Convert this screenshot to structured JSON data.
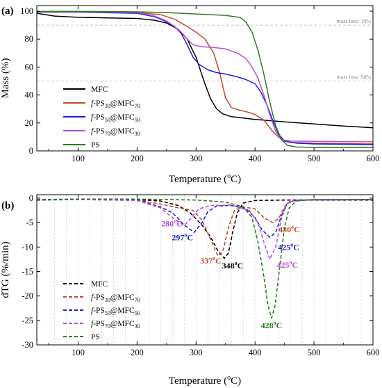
{
  "chart_data": [
    {
      "id": "a",
      "panel_label": "(a)",
      "type": "line",
      "xlabel": "Temperature (°C)",
      "ylabel": "Mass (%)",
      "xlim": [
        30,
        600
      ],
      "ylim": [
        0,
        104
      ],
      "xticks": [
        100,
        200,
        300,
        400,
        500,
        600
      ],
      "yticks": [
        0,
        20,
        40,
        60,
        80,
        100
      ],
      "legend_position": "bottom-left",
      "reference_lines": [
        {
          "y": 90,
          "label": "mass loss: 10%"
        },
        {
          "y": 50,
          "label": "mass loss: 50%"
        }
      ],
      "series": [
        {
          "name": "MFC",
          "color": "#000000",
          "points": [
            [
              30,
              98.5
            ],
            [
              60,
              96.5
            ],
            [
              100,
              95.6
            ],
            [
              150,
              95.2
            ],
            [
              200,
              94.8
            ],
            [
              230,
              93.5
            ],
            [
              250,
              91.5
            ],
            [
              270,
              87
            ],
            [
              285,
              80
            ],
            [
              300,
              67
            ],
            [
              315,
              48
            ],
            [
              325,
              37
            ],
            [
              335,
              30
            ],
            [
              345,
              26.5
            ],
            [
              360,
              24.5
            ],
            [
              400,
              22.5
            ],
            [
              450,
              20.8
            ],
            [
              500,
              19.3
            ],
            [
              550,
              17.8
            ],
            [
              600,
              16.5
            ]
          ]
        },
        {
          "name": "f-PS30@MFC70",
          "color": "#c0482a",
          "points": [
            [
              30,
              99.3
            ],
            [
              100,
              99.3
            ],
            [
              200,
              99
            ],
            [
              240,
              97.5
            ],
            [
              265,
              94
            ],
            [
              285,
              89
            ],
            [
              300,
              85
            ],
            [
              315,
              80
            ],
            [
              330,
              70
            ],
            [
              340,
              56
            ],
            [
              350,
              38
            ],
            [
              360,
              31
            ],
            [
              375,
              29
            ],
            [
              390,
              27.5
            ],
            [
              400,
              26
            ],
            [
              415,
              22
            ],
            [
              430,
              14
            ],
            [
              445,
              8
            ],
            [
              460,
              6
            ],
            [
              500,
              5.5
            ],
            [
              600,
              5
            ]
          ]
        },
        {
          "name": "f-PS50@MFC50",
          "color": "#1c1cd6",
          "points": [
            [
              30,
              99.4
            ],
            [
              100,
              99.3
            ],
            [
              200,
              98.5
            ],
            [
              230,
              96
            ],
            [
              250,
              92.5
            ],
            [
              265,
              88.5
            ],
            [
              275,
              84
            ],
            [
              285,
              76
            ],
            [
              295,
              67
            ],
            [
              305,
              62
            ],
            [
              320,
              58
            ],
            [
              335,
              56
            ],
            [
              350,
              55
            ],
            [
              370,
              53
            ],
            [
              385,
              51
            ],
            [
              400,
              48
            ],
            [
              410,
              42
            ],
            [
              420,
              33
            ],
            [
              430,
              22
            ],
            [
              440,
              12
            ],
            [
              450,
              7
            ],
            [
              470,
              5.5
            ],
            [
              500,
              5
            ],
            [
              600,
              4.5
            ]
          ]
        },
        {
          "name": "f-PS70@MFC30",
          "color": "#b54bd8",
          "points": [
            [
              30,
              99.6
            ],
            [
              100,
              99.5
            ],
            [
              200,
              99
            ],
            [
              230,
              96.5
            ],
            [
              250,
              93
            ],
            [
              265,
              88.5
            ],
            [
              275,
              85
            ],
            [
              285,
              80
            ],
            [
              295,
              76
            ],
            [
              310,
              74.5
            ],
            [
              330,
              74
            ],
            [
              350,
              73
            ],
            [
              370,
              70
            ],
            [
              385,
              66
            ],
            [
              395,
              60
            ],
            [
              405,
              52
            ],
            [
              415,
              40
            ],
            [
              425,
              26
            ],
            [
              435,
              14
            ],
            [
              445,
              8
            ],
            [
              460,
              7
            ],
            [
              500,
              6.8
            ],
            [
              600,
              6.5
            ]
          ]
        },
        {
          "name": "PS",
          "color": "#2a7a1e",
          "points": [
            [
              30,
              99.8
            ],
            [
              100,
              99.8
            ],
            [
              200,
              99.5
            ],
            [
              250,
              99
            ],
            [
              300,
              98
            ],
            [
              350,
              97
            ],
            [
              375,
              95.5
            ],
            [
              385,
              92
            ],
            [
              395,
              85
            ],
            [
              405,
              72
            ],
            [
              415,
              55
            ],
            [
              425,
              35
            ],
            [
              435,
              18
            ],
            [
              445,
              8
            ],
            [
              455,
              4
            ],
            [
              470,
              2.8
            ],
            [
              500,
              2.5
            ],
            [
              600,
              2.5
            ]
          ]
        }
      ]
    },
    {
      "id": "b",
      "panel_label": "(b)",
      "type": "line",
      "xlabel": "Temperature (°C)",
      "ylabel": "dTG (%/min)",
      "xlim": [
        30,
        600
      ],
      "ylim": [
        -30,
        0.7
      ],
      "xticks": [
        100,
        200,
        300,
        400,
        500,
        600
      ],
      "yticks": [
        0,
        -5,
        -10,
        -15,
        -20,
        -25,
        -30
      ],
      "legend_position": "bottom-left",
      "annotations": [
        {
          "text": "280°C",
          "x": 259,
          "y": -5.8,
          "color": "#b54bd8"
        },
        {
          "text": "297°C",
          "x": 277,
          "y": -8.6,
          "color": "#1c1cd6"
        },
        {
          "text": "337°C",
          "x": 325,
          "y": -13.4,
          "color": "#c0482a"
        },
        {
          "text": "348°C",
          "x": 362,
          "y": -14.4,
          "color": "#000000"
        },
        {
          "text": "430°C",
          "x": 458,
          "y": -7.0,
          "color": "#c0482a"
        },
        {
          "text": "425°C",
          "x": 457,
          "y": -10.6,
          "color": "#1c1cd6"
        },
        {
          "text": "425°C",
          "x": 455,
          "y": -14.2,
          "color": "#b54bd8"
        },
        {
          "text": "428°C",
          "x": 428,
          "y": -26.6,
          "color": "#2a7a1e"
        }
      ],
      "series": [
        {
          "name": "MFC",
          "color": "#000000",
          "points": [
            [
              30,
              -0.4
            ],
            [
              100,
              -0.3
            ],
            [
              200,
              -0.3
            ],
            [
              240,
              -0.6
            ],
            [
              270,
              -1.5
            ],
            [
              290,
              -3
            ],
            [
              310,
              -5.5
            ],
            [
              325,
              -8
            ],
            [
              338,
              -11
            ],
            [
              348,
              -12.3
            ],
            [
              355,
              -11.2
            ],
            [
              362,
              -7
            ],
            [
              370,
              -3
            ],
            [
              380,
              -1
            ],
            [
              400,
              -0.5
            ],
            [
              450,
              -0.4
            ],
            [
              500,
              -0.4
            ],
            [
              600,
              -0.4
            ]
          ]
        },
        {
          "name": "f-PS30@MFC70",
          "color": "#c0482a",
          "points": [
            [
              30,
              -0.3
            ],
            [
              100,
              -0.3
            ],
            [
              200,
              -0.4
            ],
            [
              240,
              -1.2
            ],
            [
              270,
              -2
            ],
            [
              295,
              -2.5
            ],
            [
              310,
              -4.5
            ],
            [
              325,
              -8.5
            ],
            [
              337,
              -11.8
            ],
            [
              345,
              -11
            ],
            [
              355,
              -6
            ],
            [
              365,
              -2.5
            ],
            [
              380,
              -1.8
            ],
            [
              400,
              -2.2
            ],
            [
              415,
              -4
            ],
            [
              430,
              -5
            ],
            [
              440,
              -4.2
            ],
            [
              450,
              -1.8
            ],
            [
              460,
              -0.6
            ],
            [
              500,
              -0.3
            ],
            [
              600,
              -0.3
            ]
          ]
        },
        {
          "name": "f-PS50@MFC50",
          "color": "#1c1cd6",
          "points": [
            [
              30,
              -0.3
            ],
            [
              100,
              -0.3
            ],
            [
              200,
              -0.4
            ],
            [
              240,
              -1.8
            ],
            [
              260,
              -3
            ],
            [
              280,
              -5.5
            ],
            [
              297,
              -7
            ],
            [
              310,
              -5
            ],
            [
              320,
              -2.8
            ],
            [
              335,
              -1.6
            ],
            [
              360,
              -1.5
            ],
            [
              385,
              -2.2
            ],
            [
              400,
              -4
            ],
            [
              412,
              -6.5
            ],
            [
              425,
              -8
            ],
            [
              435,
              -7
            ],
            [
              445,
              -3.5
            ],
            [
              455,
              -1
            ],
            [
              470,
              -0.4
            ],
            [
              600,
              -0.3
            ]
          ]
        },
        {
          "name": "f-PS70@MFC30",
          "color": "#b54bd8",
          "points": [
            [
              30,
              -0.3
            ],
            [
              100,
              -0.3
            ],
            [
              200,
              -0.5
            ],
            [
              240,
              -2
            ],
            [
              260,
              -4
            ],
            [
              280,
              -5.6
            ],
            [
              292,
              -4
            ],
            [
              305,
              -2.2
            ],
            [
              325,
              -1.5
            ],
            [
              360,
              -1.4
            ],
            [
              390,
              -2.5
            ],
            [
              405,
              -5
            ],
            [
              415,
              -9
            ],
            [
              425,
              -12.5
            ],
            [
              435,
              -10
            ],
            [
              445,
              -4
            ],
            [
              455,
              -1
            ],
            [
              470,
              -0.4
            ],
            [
              600,
              -0.3
            ]
          ]
        },
        {
          "name": "PS",
          "color": "#2a7a1e",
          "points": [
            [
              30,
              -0.3
            ],
            [
              100,
              -0.2
            ],
            [
              200,
              -0.2
            ],
            [
              300,
              -0.4
            ],
            [
              350,
              -0.8
            ],
            [
              380,
              -1.8
            ],
            [
              395,
              -4
            ],
            [
              405,
              -9
            ],
            [
              415,
              -16
            ],
            [
              422,
              -22
            ],
            [
              428,
              -24.5
            ],
            [
              434,
              -22
            ],
            [
              442,
              -14
            ],
            [
              450,
              -6
            ],
            [
              458,
              -2
            ],
            [
              470,
              -0.6
            ],
            [
              500,
              -0.3
            ],
            [
              600,
              -0.3
            ]
          ]
        }
      ]
    }
  ],
  "legend_labels": {
    "MFC": "MFC",
    "f-PS30@MFC70": [
      "f",
      "-PS",
      "30",
      "@MFC",
      "70"
    ],
    "f-PS50@MFC50": [
      "f",
      "-PS",
      "50",
      "@MFC",
      "50"
    ],
    "f-PS70@MFC30": [
      "f",
      "-PS",
      "70",
      "@MFC",
      "30"
    ],
    "PS": "PS"
  }
}
